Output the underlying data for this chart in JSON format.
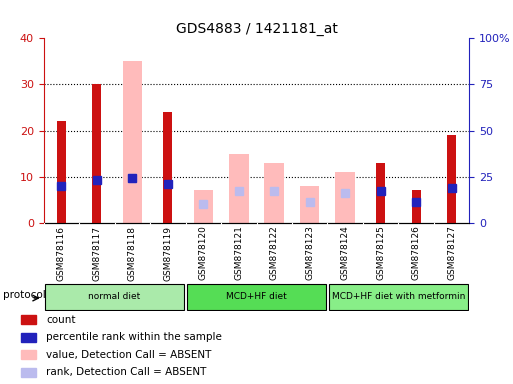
{
  "title": "GDS4883 / 1421181_at",
  "samples": [
    "GSM878116",
    "GSM878117",
    "GSM878118",
    "GSM878119",
    "GSM878120",
    "GSM878121",
    "GSM878122",
    "GSM878123",
    "GSM878124",
    "GSM878125",
    "GSM878126",
    "GSM878127"
  ],
  "count": [
    22,
    30,
    null,
    24,
    null,
    null,
    null,
    null,
    null,
    13,
    7,
    19
  ],
  "percentile_rank": [
    20,
    23,
    24,
    21,
    null,
    null,
    null,
    null,
    null,
    17,
    11,
    19
  ],
  "value_absent": [
    null,
    null,
    35,
    null,
    7,
    15,
    13,
    8,
    11,
    null,
    null,
    null
  ],
  "rank_absent": [
    null,
    null,
    24,
    null,
    10,
    17,
    17,
    11,
    16,
    null,
    null,
    null
  ],
  "proto_labels": [
    "normal diet",
    "MCD+HF diet",
    "MCD+HF diet with metformin"
  ],
  "proto_starts": [
    0,
    4,
    8
  ],
  "proto_ends": [
    4,
    8,
    12
  ],
  "proto_colors": [
    "#aaeaaa",
    "#55dd55",
    "#88ee88"
  ],
  "ylim_left": [
    0,
    40
  ],
  "ylim_right": [
    0,
    100
  ],
  "yticks_left": [
    0,
    10,
    20,
    30,
    40
  ],
  "yticks_right": [
    0,
    25,
    50,
    75,
    100
  ],
  "yticklabels_right": [
    "0",
    "25",
    "50",
    "75",
    "100%"
  ],
  "count_color": "#cc1111",
  "percentile_color": "#2222bb",
  "value_absent_color": "#ffbbbb",
  "rank_absent_color": "#bbbbee",
  "bg_color": "#ffffff",
  "label_bg_color": "#d0d0d0",
  "legend_items": [
    {
      "color": "#cc1111",
      "label": "count"
    },
    {
      "color": "#2222bb",
      "label": "percentile rank within the sample"
    },
    {
      "color": "#ffbbbb",
      "label": "value, Detection Call = ABSENT"
    },
    {
      "color": "#bbbbee",
      "label": "rank, Detection Call = ABSENT"
    }
  ]
}
